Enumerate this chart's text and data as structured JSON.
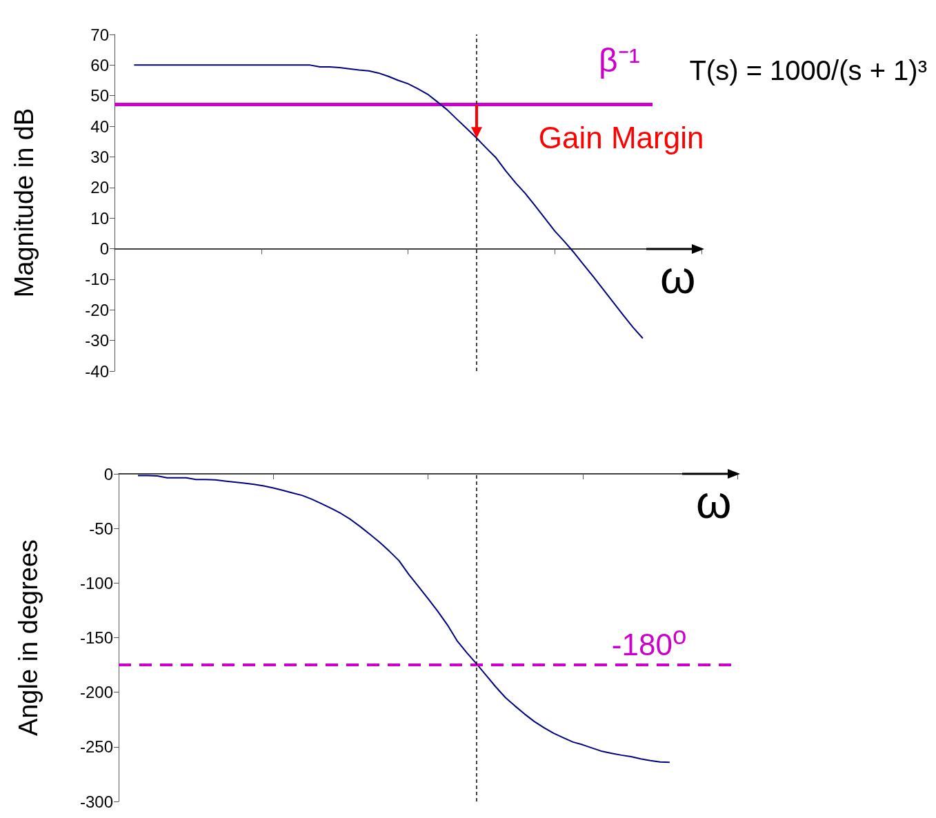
{
  "chart_data": [
    {
      "type": "line",
      "ylabel": "Magnitude in dB",
      "xlabel": "ω",
      "tick_labels": "y",
      "grid": false,
      "categories": [
        null,
        null,
        null,
        null,
        null,
        null,
        null,
        null,
        null,
        null,
        null,
        null,
        null,
        null,
        null,
        null,
        null,
        null,
        null,
        null,
        null,
        null,
        null,
        null,
        null,
        null,
        null,
        null,
        null,
        null,
        null,
        null,
        null,
        null,
        null,
        null,
        null,
        null,
        null,
        null,
        null,
        null,
        null,
        null,
        null,
        null,
        null,
        null,
        null,
        null,
        null,
        null,
        null,
        null,
        null,
        null,
        null,
        null,
        null,
        null,
        null
      ],
      "ylim": [
        -40,
        70
      ],
      "yticks": [
        -40,
        -30,
        -20,
        -10,
        0,
        10,
        20,
        30,
        40,
        50,
        60,
        70
      ],
      "series": [
        {
          "color": "#000080",
          "values": [
            null,
            null,
            60,
            60,
            60,
            60,
            60,
            60,
            60,
            60,
            60,
            60,
            60,
            60,
            60,
            60,
            60,
            60,
            60,
            60,
            60,
            59.4,
            59.4,
            59.2,
            58.8,
            58.4,
            58.1,
            57.4,
            56.3,
            55.0,
            53.9,
            52.3,
            50.5,
            48.0,
            45.4,
            42.3,
            39.3,
            36.2,
            32.9,
            29.7,
            25.4,
            21.5,
            18.0,
            14.0,
            9.9,
            5.8,
            2.3,
            -1.4,
            -5.4,
            -9.4,
            -13.5,
            -17.6,
            -21.7,
            -25.7,
            -29.3,
            null,
            null,
            null,
            null,
            null,
            null
          ]
        },
        {
          "name": "β⁻¹",
          "color": "#cc00cc",
          "values": [
            47.1,
            47.1,
            47.1,
            47.1,
            47.1,
            47.1,
            47.1,
            47.1,
            47.1,
            47.1,
            47.1,
            47.1,
            47.1,
            47.1,
            47.1,
            47.1,
            47.1,
            47.1,
            47.1,
            47.1,
            47.1,
            47.1,
            47.1,
            47.1,
            47.1,
            47.1,
            47.1,
            47.1,
            47.1,
            47.1,
            47.1,
            47.1,
            47.1,
            47.1,
            47.1,
            47.1,
            47.1,
            47.1,
            47.1,
            47.1,
            47.1,
            47.1,
            47.1,
            47.1,
            47.1,
            47.1,
            47.1,
            47.1,
            47.1,
            47.1,
            47.1,
            47.1,
            47.1,
            47.1,
            47.1,
            47.1,
            null,
            null,
            null,
            null,
            null
          ]
        }
      ],
      "annotations": [
        "Gain Margin",
        "T(s) = 1000/(s + 1)³"
      ]
    },
    {
      "type": "line",
      "ylabel": "Angle in degrees",
      "xlabel": "ω",
      "tick_labels": "y",
      "grid": false,
      "categories": [
        null,
        null,
        null,
        null,
        null,
        null,
        null,
        null,
        null,
        null,
        null,
        null,
        null,
        null,
        null,
        null,
        null,
        null,
        null,
        null,
        null,
        null,
        null,
        null,
        null,
        null,
        null,
        null,
        null,
        null,
        null,
        null,
        null,
        null,
        null,
        null,
        null,
        null,
        null,
        null,
        null,
        null,
        null,
        null,
        null,
        null,
        null,
        null,
        null,
        null,
        null,
        null,
        null,
        null,
        null,
        null,
        null,
        null,
        null,
        null,
        null,
        null,
        null,
        null,
        null
      ],
      "ylim": [
        -300,
        0
      ],
      "yticks": [
        -300,
        -250,
        -200,
        -150,
        -100,
        -50,
        0
      ],
      "series": [
        {
          "color": "#000080",
          "values": [
            null,
            null,
            -1.6,
            -1.6,
            -1.9,
            -3.6,
            -3.6,
            -3.6,
            -5.2,
            -5.2,
            -5.6,
            -6.6,
            -7.6,
            -8.6,
            -9.6,
            -11.1,
            -13.0,
            -15.2,
            -17.5,
            -19.8,
            -23.3,
            -27.4,
            -31.6,
            -36.3,
            -41.8,
            -48.4,
            -55.4,
            -62.7,
            -70.8,
            -79.5,
            -92.0,
            -103.1,
            -114.2,
            -125.8,
            -138.2,
            -152.7,
            -163.7,
            -173.8,
            -184.3,
            -195.0,
            -204.8,
            -212.6,
            -220.0,
            -226.8,
            -232.5,
            -237.5,
            -241.6,
            -245.6,
            -248.1,
            -251.1,
            -254.1,
            -255.9,
            -257.6,
            -259.0,
            -261.0,
            -262.6,
            -263.9,
            -264.1,
            null,
            null,
            null,
            null,
            null,
            null,
            null
          ]
        }
      ],
      "ref_lines": [
        {
          "axis": "y",
          "value": -175,
          "label": "-180$^{o}$",
          "color": "#cc00cc",
          "line_style": "dashed"
        }
      ]
    }
  ]
}
